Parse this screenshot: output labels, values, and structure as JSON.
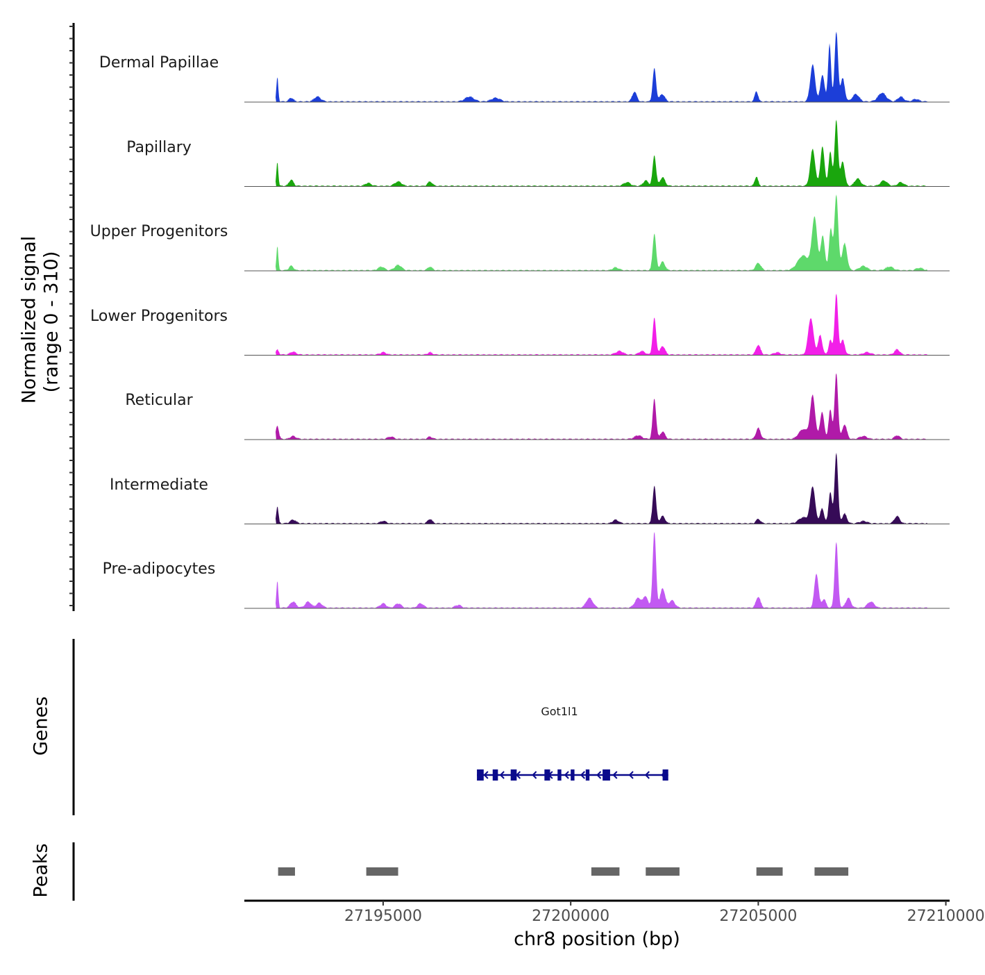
{
  "chart_data": {
    "type": "area",
    "title": "",
    "xlabel": "chr8 position (bp)",
    "ylabel": "Normalized signal\n(range 0 - 310)",
    "x_range": [
      27191300,
      27210100
    ],
    "x_ticks": [
      27195000,
      27200000,
      27205000,
      27210000
    ],
    "x_tick_labels": [
      "27195000",
      "27200000",
      "27205000",
      "27210000"
    ],
    "y_range": [
      0,
      310
    ],
    "coverage_tracks": [
      {
        "name": "Dermal Papillae",
        "color": "#1c3ed8",
        "peaks": [
          [
            27192180,
            100,
            25
          ],
          [
            27192550,
            15,
            60
          ],
          [
            27193250,
            20,
            90
          ],
          [
            27197300,
            20,
            120
          ],
          [
            27198000,
            15,
            120
          ],
          [
            27201700,
            40,
            60
          ],
          [
            27202230,
            135,
            45
          ],
          [
            27202440,
            30,
            70
          ],
          [
            27204950,
            42,
            45
          ],
          [
            27206450,
            150,
            65
          ],
          [
            27206710,
            110,
            55
          ],
          [
            27206900,
            235,
            40
          ],
          [
            27207080,
            285,
            45
          ],
          [
            27207250,
            95,
            55
          ],
          [
            27207600,
            30,
            90
          ],
          [
            27208300,
            35,
            110
          ],
          [
            27208800,
            20,
            80
          ],
          [
            27209200,
            10,
            90
          ]
        ]
      },
      {
        "name": "Papillary",
        "color": "#1aa60d",
        "peaks": [
          [
            27192180,
            100,
            25
          ],
          [
            27192550,
            25,
            60
          ],
          [
            27194600,
            12,
            80
          ],
          [
            27195400,
            18,
            90
          ],
          [
            27196250,
            18,
            60
          ],
          [
            27201500,
            15,
            90
          ],
          [
            27202000,
            22,
            70
          ],
          [
            27202230,
            125,
            45
          ],
          [
            27202450,
            35,
            65
          ],
          [
            27204950,
            38,
            45
          ],
          [
            27206450,
            150,
            65
          ],
          [
            27206710,
            160,
            55
          ],
          [
            27206920,
            140,
            45
          ],
          [
            27207080,
            270,
            45
          ],
          [
            27207250,
            100,
            55
          ],
          [
            27207650,
            30,
            80
          ],
          [
            27208350,
            22,
            90
          ],
          [
            27208800,
            15,
            80
          ]
        ]
      },
      {
        "name": "Upper Progenitors",
        "color": "#5ed96b",
        "peaks": [
          [
            27192180,
            100,
            25
          ],
          [
            27192550,
            18,
            60
          ],
          [
            27194950,
            15,
            80
          ],
          [
            27195400,
            22,
            90
          ],
          [
            27196250,
            15,
            60
          ],
          [
            27201200,
            12,
            80
          ],
          [
            27202230,
            150,
            45
          ],
          [
            27202450,
            35,
            65
          ],
          [
            27205000,
            30,
            70
          ],
          [
            27206200,
            60,
            150
          ],
          [
            27206500,
            210,
            70
          ],
          [
            27206720,
            140,
            55
          ],
          [
            27206930,
            170,
            45
          ],
          [
            27207080,
            310,
            50
          ],
          [
            27207300,
            110,
            65
          ],
          [
            27207800,
            18,
            100
          ],
          [
            27208500,
            15,
            100
          ],
          [
            27209300,
            10,
            90
          ]
        ]
      },
      {
        "name": "Lower Progenitors",
        "color": "#f21fe8",
        "peaks": [
          [
            27192180,
            20,
            40
          ],
          [
            27192600,
            12,
            80
          ],
          [
            27195000,
            10,
            80
          ],
          [
            27196250,
            10,
            60
          ],
          [
            27201300,
            15,
            100
          ],
          [
            27201900,
            15,
            80
          ],
          [
            27202230,
            150,
            45
          ],
          [
            27202450,
            35,
            65
          ],
          [
            27205000,
            40,
            60
          ],
          [
            27205500,
            10,
            80
          ],
          [
            27206400,
            150,
            70
          ],
          [
            27206650,
            80,
            55
          ],
          [
            27206920,
            60,
            45
          ],
          [
            27207080,
            250,
            45
          ],
          [
            27207250,
            60,
            55
          ],
          [
            27207900,
            10,
            100
          ],
          [
            27208700,
            22,
            70
          ]
        ]
      },
      {
        "name": "Reticular",
        "color": "#b01aa8",
        "peaks": [
          [
            27192180,
            55,
            40
          ],
          [
            27192600,
            12,
            80
          ],
          [
            27195200,
            10,
            80
          ],
          [
            27196250,
            10,
            60
          ],
          [
            27201800,
            15,
            100
          ],
          [
            27202230,
            165,
            45
          ],
          [
            27202450,
            30,
            65
          ],
          [
            27205000,
            45,
            60
          ],
          [
            27206200,
            40,
            120
          ],
          [
            27206450,
            175,
            65
          ],
          [
            27206700,
            110,
            55
          ],
          [
            27206920,
            120,
            45
          ],
          [
            27207080,
            270,
            45
          ],
          [
            27207300,
            60,
            60
          ],
          [
            27207800,
            12,
            100
          ],
          [
            27208700,
            15,
            70
          ]
        ]
      },
      {
        "name": "Intermediate",
        "color": "#360b57",
        "peaks": [
          [
            27192180,
            70,
            30
          ],
          [
            27192600,
            15,
            80
          ],
          [
            27195000,
            10,
            80
          ],
          [
            27196250,
            18,
            60
          ],
          [
            27201200,
            15,
            80
          ],
          [
            27202230,
            155,
            45
          ],
          [
            27202450,
            30,
            65
          ],
          [
            27205000,
            18,
            60
          ],
          [
            27206200,
            25,
            120
          ],
          [
            27206450,
            150,
            65
          ],
          [
            27206700,
            60,
            55
          ],
          [
            27206920,
            130,
            45
          ],
          [
            27207080,
            290,
            45
          ],
          [
            27207300,
            40,
            60
          ],
          [
            27207800,
            10,
            100
          ],
          [
            27208700,
            30,
            70
          ]
        ]
      },
      {
        "name": "Pre-adipocytes",
        "color": "#c259f2",
        "peaks": [
          [
            27192180,
            110,
            25
          ],
          [
            27192600,
            25,
            80
          ],
          [
            27193000,
            25,
            80
          ],
          [
            27193300,
            20,
            80
          ],
          [
            27195000,
            18,
            80
          ],
          [
            27195400,
            18,
            80
          ],
          [
            27196000,
            18,
            80
          ],
          [
            27197000,
            12,
            80
          ],
          [
            27200500,
            40,
            90
          ],
          [
            27201800,
            40,
            90
          ],
          [
            27202000,
            45,
            60
          ],
          [
            27202230,
            310,
            45
          ],
          [
            27202450,
            80,
            65
          ],
          [
            27202700,
            30,
            80
          ],
          [
            27205000,
            45,
            60
          ],
          [
            27206550,
            140,
            55
          ],
          [
            27206750,
            35,
            55
          ],
          [
            27207080,
            270,
            45
          ],
          [
            27207400,
            40,
            70
          ],
          [
            27208000,
            25,
            90
          ]
        ]
      }
    ],
    "genes": [
      {
        "name": "Got1l1",
        "start": 27197500,
        "end": 27202600,
        "strand": "-",
        "exons": [
          [
            27197500,
            27197680
          ],
          [
            27197920,
            27198060
          ],
          [
            27198400,
            27198560
          ],
          [
            27199300,
            27199450
          ],
          [
            27199650,
            27199750
          ],
          [
            27200000,
            27200100
          ],
          [
            27200400,
            27200500
          ],
          [
            27200850,
            27201050
          ],
          [
            27202450,
            27202600
          ]
        ]
      }
    ],
    "peaks": [
      [
        27192200,
        27192650
      ],
      [
        27194550,
        27195400
      ],
      [
        27200550,
        27201300
      ],
      [
        27202000,
        27202900
      ],
      [
        27204950,
        27205650
      ],
      [
        27206500,
        27207400
      ]
    ],
    "panel_labels": {
      "genes": "Genes",
      "peaks": "Peaks"
    }
  }
}
